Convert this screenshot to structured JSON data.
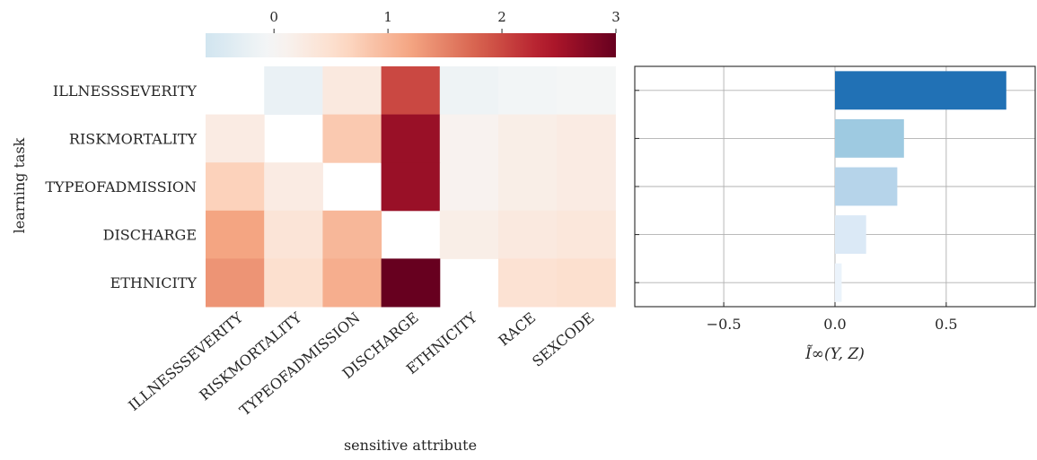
{
  "chart_data": [
    {
      "type": "heatmap",
      "xlabel": "sensitive attribute",
      "ylabel": "learning task",
      "rows": [
        "ILLNESSSEVERITY",
        "RISKMORTALITY",
        "TYPEOFADMISSION",
        "DISCHARGE",
        "ETHNICITY"
      ],
      "columns": [
        "ILLNESSSEVERITY",
        "RISKMORTALITY",
        "TYPEOFADMISSION",
        "DISCHARGE",
        "ETHNICITY",
        "RACE",
        "SEXCODE"
      ],
      "values": [
        [
          null,
          -0.2,
          0.3,
          2.0,
          -0.15,
          -0.08,
          -0.05
        ],
        [
          0.25,
          null,
          0.8,
          2.6,
          0.1,
          0.2,
          0.25
        ],
        [
          0.7,
          0.25,
          null,
          2.6,
          0.1,
          0.2,
          0.25
        ],
        [
          1.2,
          0.4,
          1.0,
          null,
          0.2,
          0.3,
          0.35
        ],
        [
          1.35,
          0.5,
          1.1,
          3.0,
          null,
          0.45,
          0.5
        ]
      ],
      "colorbar": {
        "range": [
          -0.6,
          3
        ],
        "ticks": [
          "0",
          "1",
          "2",
          "3"
        ],
        "position": "top"
      }
    },
    {
      "type": "bar",
      "orientation": "horizontal",
      "categories": [
        "ILLNESSSEVERITY",
        "RISKMORTALITY",
        "TYPEOFADMISSION",
        "DISCHARGE",
        "ETHNICITY"
      ],
      "values": [
        0.77,
        0.31,
        0.28,
        0.14,
        0.03
      ],
      "colors": [
        "#2171b5",
        "#9ecae1",
        "#b6d4ea",
        "#dbe9f6",
        "#ebf3fb"
      ],
      "xlabel": "Ĩ∞(Y, Z)",
      "xlim": [
        -0.9,
        0.9
      ],
      "xticks": [
        "−0.5",
        "0.0",
        "0.5"
      ],
      "grid": true
    }
  ]
}
